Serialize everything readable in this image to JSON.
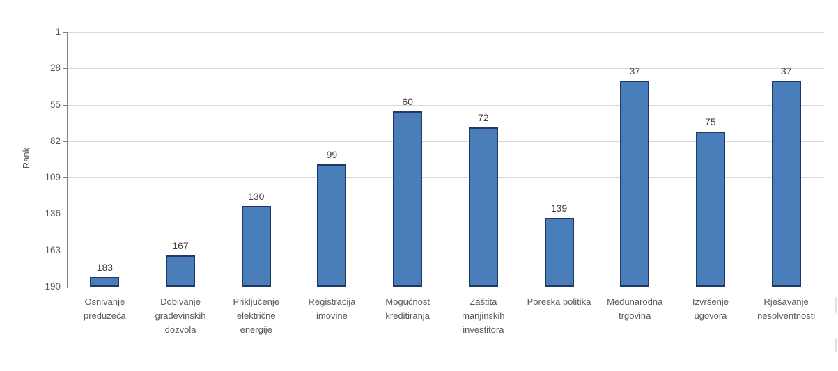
{
  "chart_data": {
    "type": "bar",
    "title": "",
    "xlabel": "",
    "ylabel": "Rank",
    "y_axis": {
      "min": 1,
      "max": 190,
      "inverted": true,
      "ticks": [
        1,
        28,
        55,
        82,
        109,
        136,
        163,
        190
      ]
    },
    "grid": true,
    "legend": null,
    "categories": [
      {
        "label": "Osnivanje preduzeća",
        "lines": [
          "Osnivanje",
          "preduzeća"
        ]
      },
      {
        "label": "Dobivanje građevinskih dozvola",
        "lines": [
          "Dobivanje",
          "građevinskih",
          "dozvola"
        ]
      },
      {
        "label": "Priključenje električne energije",
        "lines": [
          "Priključenje",
          "električne",
          "energije"
        ]
      },
      {
        "label": "Registracija imovine",
        "lines": [
          "Registracija",
          "imovine"
        ]
      },
      {
        "label": "Mogućnost kreditiranja",
        "lines": [
          "Mogućnost",
          "kreditiranja"
        ]
      },
      {
        "label": "Zaštita manjinskih investitora",
        "lines": [
          "Zaštita",
          "manjinskih",
          "investitora"
        ]
      },
      {
        "label": "Poreska politika",
        "lines": [
          "Poreska politika"
        ]
      },
      {
        "label": "Međunarodna trgovina",
        "lines": [
          "Međunarodna",
          "trgovina"
        ]
      },
      {
        "label": "Izvršenje ugovora",
        "lines": [
          "Izvršenje",
          "ugovora"
        ]
      },
      {
        "label": "Rješavanje nesolventnosti",
        "lines": [
          "Rješavanje",
          "nesolventnosti"
        ]
      }
    ],
    "values": [
      183,
      167,
      130,
      99,
      60,
      72,
      139,
      37,
      75,
      37
    ],
    "colors": {
      "bar_fill": "#4a7ebb",
      "bar_border": "#1f3864",
      "gridline": "#d9d9d9",
      "axis_line": "#7f7f7f",
      "tick_label": "#595959",
      "value_label": "#404040"
    }
  }
}
